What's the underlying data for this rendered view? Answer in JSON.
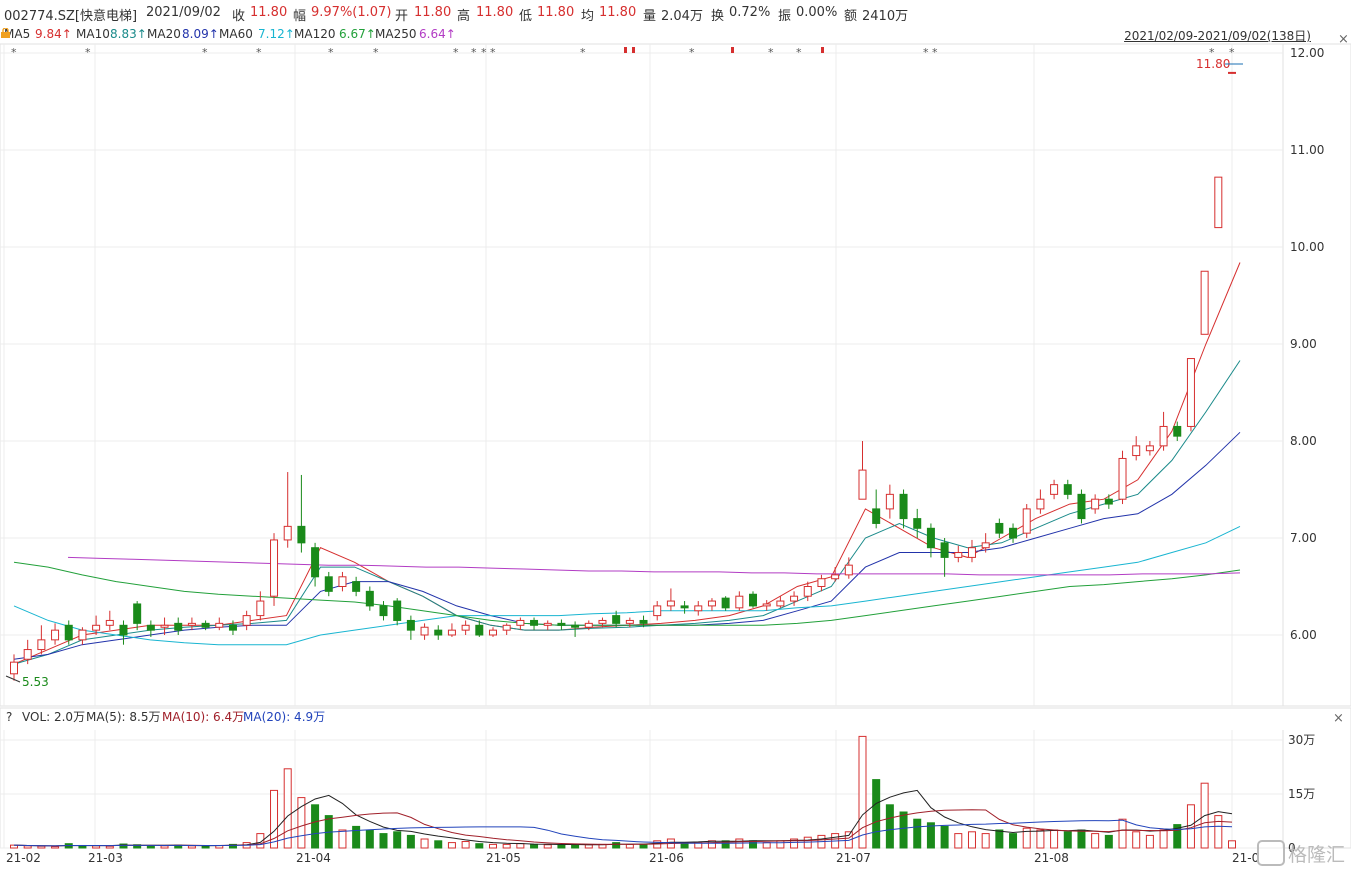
{
  "header": {
    "code": "002774.SZ[快意电梯]",
    "date": "2021/09/02",
    "close_label": "收",
    "close": "11.80",
    "amp_label": "幅",
    "amp": "9.97%(1.07)",
    "open_label": "开",
    "open": "11.80",
    "high_label": "高",
    "high": "11.80",
    "low_label": "低",
    "low": "11.80",
    "avg_label": "均",
    "avg": "11.80",
    "vol_label": "量",
    "vol": "2.04万",
    "turn_label": "换",
    "turn": "0.72%",
    "swing_label": "振",
    "swing": "0.00%",
    "amt_label": "额",
    "amt": "2410万"
  },
  "ma_bar": {
    "ma5": "MA5",
    "ma5_val": "9.84↑",
    "ma10": "MA10",
    "ma10_val": "8.83↑",
    "ma20": "MA20",
    "ma20_val": "8.09↑",
    "ma60": "MA60",
    "ma60_val": "7.12↑",
    "ma120": "MA120",
    "ma120_val": "6.67↑",
    "ma250": "MA250",
    "ma250_val": "6.64↑",
    "range": "2021/02/09-2021/09/02(138日)"
  },
  "vol_bar": {
    "help": "?",
    "vol": "VOL: 2.0万",
    "ma5": "MA(5): 8.5万",
    "ma10": "MA(10): 6.4万",
    "ma20": "MA(20): 4.9万"
  },
  "labels": {
    "last_price": "11.80",
    "low_marker": "5.53",
    "watermark": "格隆汇"
  },
  "colors": {
    "up": "#d62f2f",
    "down": "#1a8a1a",
    "ma5": "#d62f2f",
    "ma10": "#1a8a8a",
    "ma20": "#2233aa",
    "ma60": "#19b5d1",
    "ma120": "#22a03a",
    "ma250": "#b23cc4",
    "vol_ma5": "#222222",
    "vol_ma10": "#a0202a",
    "vol_ma20": "#2244bb"
  },
  "chart_data": {
    "type": "candlestick",
    "price_axis": {
      "ticks": [
        "12.00",
        "11.00",
        "10.00",
        "9.00",
        "8.00",
        "7.00",
        "6.00"
      ],
      "ylim": [
        5.3,
        12.2
      ]
    },
    "volume_axis": {
      "ticks": [
        "30万",
        "15万",
        "0"
      ],
      "ylim": [
        0,
        32
      ]
    },
    "x_ticks": [
      "21-02",
      "21-03",
      "21-04",
      "21-05",
      "21-06",
      "21-07",
      "21-08",
      "21-0"
    ],
    "series": [
      {
        "name": "MA5",
        "approx_values": [
          5.7,
          5.85,
          6.0,
          6.05,
          6.1,
          6.1,
          6.1,
          6.15,
          6.2,
          6.9,
          6.75,
          6.55,
          6.4,
          6.2,
          6.1,
          6.05,
          6.05,
          6.08,
          6.1,
          6.12,
          6.15,
          6.2,
          6.3,
          6.5,
          6.6,
          7.3,
          7.1,
          6.9,
          6.8,
          7.0,
          7.2,
          7.35,
          7.4,
          7.6,
          8.1,
          9.0,
          9.84
        ]
      },
      {
        "name": "MA10",
        "approx_values": [
          5.7,
          5.8,
          5.95,
          6.0,
          6.05,
          6.08,
          6.1,
          6.12,
          6.15,
          6.7,
          6.7,
          6.55,
          6.4,
          6.2,
          6.1,
          6.05,
          6.05,
          6.07,
          6.08,
          6.1,
          6.12,
          6.15,
          6.2,
          6.35,
          6.5,
          7.0,
          7.15,
          7.0,
          6.9,
          6.95,
          7.1,
          7.25,
          7.35,
          7.45,
          7.8,
          8.3,
          8.83
        ]
      },
      {
        "name": "MA20",
        "approx_values": [
          5.75,
          5.8,
          5.9,
          5.95,
          6.0,
          6.05,
          6.08,
          6.1,
          6.1,
          6.45,
          6.55,
          6.55,
          6.45,
          6.3,
          6.2,
          6.12,
          6.1,
          6.1,
          6.1,
          6.1,
          6.1,
          6.12,
          6.15,
          6.25,
          6.35,
          6.7,
          6.85,
          6.85,
          6.85,
          6.9,
          7.0,
          7.1,
          7.2,
          7.25,
          7.45,
          7.75,
          8.09
        ]
      },
      {
        "name": "MA60",
        "approx_values": [
          6.3,
          6.15,
          6.05,
          6.0,
          5.95,
          5.92,
          5.9,
          5.9,
          5.9,
          6.0,
          6.05,
          6.1,
          6.15,
          6.2,
          6.2,
          6.2,
          6.2,
          6.22,
          6.23,
          6.25,
          6.25,
          6.25,
          6.25,
          6.28,
          6.3,
          6.35,
          6.4,
          6.45,
          6.5,
          6.55,
          6.6,
          6.65,
          6.7,
          6.75,
          6.85,
          6.95,
          7.12
        ]
      },
      {
        "name": "MA120",
        "approx_values": [
          6.75,
          6.7,
          6.62,
          6.55,
          6.5,
          6.45,
          6.42,
          6.4,
          6.38,
          6.36,
          6.34,
          6.3,
          6.25,
          6.2,
          6.15,
          6.12,
          6.1,
          6.1,
          6.1,
          6.1,
          6.1,
          6.1,
          6.1,
          6.12,
          6.15,
          6.2,
          6.25,
          6.3,
          6.35,
          6.4,
          6.45,
          6.5,
          6.52,
          6.55,
          6.58,
          6.62,
          6.67
        ]
      },
      {
        "name": "MA250",
        "approx_values": [
          6.8,
          6.79,
          6.78,
          6.77,
          6.76,
          6.75,
          6.74,
          6.73,
          6.72,
          6.72,
          6.71,
          6.7,
          6.7,
          6.69,
          6.68,
          6.67,
          6.66,
          6.66,
          6.65,
          6.65,
          6.65,
          6.64,
          6.64,
          6.63,
          6.63,
          6.63,
          6.63,
          6.63,
          6.62,
          6.62,
          6.62,
          6.62,
          6.62,
          6.63,
          6.63,
          6.63,
          6.64
        ]
      }
    ],
    "candles_approx": [
      {
        "o": 5.6,
        "c": 5.72,
        "h": 5.8,
        "l": 5.53
      },
      {
        "o": 5.75,
        "c": 5.85,
        "h": 5.95,
        "l": 5.7
      },
      {
        "o": 5.85,
        "c": 5.95,
        "h": 6.1,
        "l": 5.8
      },
      {
        "o": 5.95,
        "c": 6.05,
        "h": 6.12,
        "l": 5.9
      },
      {
        "o": 6.1,
        "c": 5.95,
        "h": 6.15,
        "l": 5.9
      },
      {
        "o": 5.95,
        "c": 6.05,
        "h": 6.08,
        "l": 5.9
      },
      {
        "o": 6.05,
        "c": 6.1,
        "h": 6.2,
        "l": 6.0
      },
      {
        "o": 6.1,
        "c": 6.15,
        "h": 6.25,
        "l": 6.05
      },
      {
        "o": 6.1,
        "c": 6.0,
        "h": 6.15,
        "l": 5.9
      },
      {
        "o": 6.32,
        "c": 6.12,
        "h": 6.35,
        "l": 6.05
      },
      {
        "o": 6.1,
        "c": 6.05,
        "h": 6.15,
        "l": 5.98
      },
      {
        "o": 6.08,
        "c": 6.1,
        "h": 6.18,
        "l": 6.0
      },
      {
        "o": 6.12,
        "c": 6.05,
        "h": 6.18,
        "l": 6.0
      },
      {
        "o": 6.1,
        "c": 6.12,
        "h": 6.18,
        "l": 6.05
      },
      {
        "o": 6.12,
        "c": 6.08,
        "h": 6.15,
        "l": 6.05
      },
      {
        "o": 6.08,
        "c": 6.12,
        "h": 6.18,
        "l": 6.05
      },
      {
        "o": 6.1,
        "c": 6.05,
        "h": 6.15,
        "l": 6.0
      },
      {
        "o": 6.1,
        "c": 6.2,
        "h": 6.25,
        "l": 6.05
      },
      {
        "o": 6.2,
        "c": 6.35,
        "h": 6.45,
        "l": 6.15
      },
      {
        "o": 6.4,
        "c": 6.98,
        "h": 7.05,
        "l": 6.3
      },
      {
        "o": 6.98,
        "c": 7.12,
        "h": 7.68,
        "l": 6.9
      },
      {
        "o": 7.12,
        "c": 6.95,
        "h": 7.65,
        "l": 6.85
      },
      {
        "o": 6.9,
        "c": 6.6,
        "h": 6.95,
        "l": 6.5
      },
      {
        "o": 6.6,
        "c": 6.45,
        "h": 6.65,
        "l": 6.4
      },
      {
        "o": 6.5,
        "c": 6.6,
        "h": 6.65,
        "l": 6.45
      },
      {
        "o": 6.55,
        "c": 6.45,
        "h": 6.6,
        "l": 6.4
      },
      {
        "o": 6.45,
        "c": 6.3,
        "h": 6.5,
        "l": 6.25
      },
      {
        "o": 6.3,
        "c": 6.2,
        "h": 6.35,
        "l": 6.15
      },
      {
        "o": 6.35,
        "c": 6.15,
        "h": 6.38,
        "l": 6.1
      },
      {
        "o": 6.15,
        "c": 6.05,
        "h": 6.2,
        "l": 5.95
      },
      {
        "o": 6.0,
        "c": 6.08,
        "h": 6.12,
        "l": 5.95
      },
      {
        "o": 6.05,
        "c": 6.0,
        "h": 6.1,
        "l": 5.95
      },
      {
        "o": 6.0,
        "c": 6.05,
        "h": 6.12,
        "l": 5.98
      },
      {
        "o": 6.05,
        "c": 6.1,
        "h": 6.15,
        "l": 6.0
      },
      {
        "o": 6.1,
        "c": 6.0,
        "h": 6.15,
        "l": 5.98
      },
      {
        "o": 6.0,
        "c": 6.05,
        "h": 6.08,
        "l": 5.98
      },
      {
        "o": 6.05,
        "c": 6.1,
        "h": 6.12,
        "l": 6.0
      },
      {
        "o": 6.1,
        "c": 6.15,
        "h": 6.18,
        "l": 6.05
      },
      {
        "o": 6.15,
        "c": 6.1,
        "h": 6.18,
        "l": 6.05
      },
      {
        "o": 6.1,
        "c": 6.12,
        "h": 6.15,
        "l": 6.05
      },
      {
        "o": 6.12,
        "c": 6.1,
        "h": 6.16,
        "l": 6.05
      },
      {
        "o": 6.1,
        "c": 6.08,
        "h": 6.14,
        "l": 5.98
      },
      {
        "o": 6.08,
        "c": 6.12,
        "h": 6.15,
        "l": 6.05
      },
      {
        "o": 6.12,
        "c": 6.15,
        "h": 6.18,
        "l": 6.08
      },
      {
        "o": 6.2,
        "c": 6.12,
        "h": 6.25,
        "l": 6.08
      },
      {
        "o": 6.12,
        "c": 6.15,
        "h": 6.18,
        "l": 6.08
      },
      {
        "o": 6.15,
        "c": 6.12,
        "h": 6.2,
        "l": 6.08
      },
      {
        "o": 6.2,
        "c": 6.3,
        "h": 6.35,
        "l": 6.15
      },
      {
        "o": 6.3,
        "c": 6.35,
        "h": 6.48,
        "l": 6.25
      },
      {
        "o": 6.3,
        "c": 6.28,
        "h": 6.35,
        "l": 6.22
      },
      {
        "o": 6.25,
        "c": 6.3,
        "h": 6.35,
        "l": 6.2
      },
      {
        "o": 6.3,
        "c": 6.35,
        "h": 6.38,
        "l": 6.25
      },
      {
        "o": 6.38,
        "c": 6.28,
        "h": 6.4,
        "l": 6.25
      },
      {
        "o": 6.28,
        "c": 6.4,
        "h": 6.45,
        "l": 6.25
      },
      {
        "o": 6.42,
        "c": 6.3,
        "h": 6.45,
        "l": 6.28
      },
      {
        "o": 6.3,
        "c": 6.32,
        "h": 6.36,
        "l": 6.25
      },
      {
        "o": 6.3,
        "c": 6.35,
        "h": 6.4,
        "l": 6.28
      },
      {
        "o": 6.35,
        "c": 6.4,
        "h": 6.45,
        "l": 6.3
      },
      {
        "o": 6.4,
        "c": 6.5,
        "h": 6.55,
        "l": 6.35
      },
      {
        "o": 6.5,
        "c": 6.58,
        "h": 6.62,
        "l": 6.45
      },
      {
        "o": 6.58,
        "c": 6.62,
        "h": 6.7,
        "l": 6.55
      },
      {
        "o": 6.62,
        "c": 6.72,
        "h": 6.8,
        "l": 6.58
      },
      {
        "o": 7.4,
        "c": 7.7,
        "h": 8.0,
        "l": 7.5
      },
      {
        "o": 7.3,
        "c": 7.15,
        "h": 7.5,
        "l": 7.1
      },
      {
        "o": 7.3,
        "c": 7.45,
        "h": 7.55,
        "l": 7.2
      },
      {
        "o": 7.45,
        "c": 7.2,
        "h": 7.5,
        "l": 7.1
      },
      {
        "o": 7.2,
        "c": 7.1,
        "h": 7.3,
        "l": 7.0
      },
      {
        "o": 7.1,
        "c": 6.9,
        "h": 7.15,
        "l": 6.8
      },
      {
        "o": 6.95,
        "c": 6.8,
        "h": 7.0,
        "l": 6.6
      },
      {
        "o": 6.8,
        "c": 6.85,
        "h": 6.92,
        "l": 6.75
      },
      {
        "o": 6.8,
        "c": 6.9,
        "h": 6.98,
        "l": 6.75
      },
      {
        "o": 6.9,
        "c": 6.95,
        "h": 7.05,
        "l": 6.85
      },
      {
        "o": 7.15,
        "c": 7.05,
        "h": 7.2,
        "l": 7.0
      },
      {
        "o": 7.1,
        "c": 7.0,
        "h": 7.15,
        "l": 6.95
      },
      {
        "o": 7.05,
        "c": 7.3,
        "h": 7.35,
        "l": 7.0
      },
      {
        "o": 7.3,
        "c": 7.4,
        "h": 7.5,
        "l": 7.25
      },
      {
        "o": 7.45,
        "c": 7.55,
        "h": 7.6,
        "l": 7.4
      },
      {
        "o": 7.55,
        "c": 7.45,
        "h": 7.6,
        "l": 7.4
      },
      {
        "o": 7.45,
        "c": 7.2,
        "h": 7.5,
        "l": 7.15
      },
      {
        "o": 7.3,
        "c": 7.4,
        "h": 7.45,
        "l": 7.25
      },
      {
        "o": 7.4,
        "c": 7.35,
        "h": 7.45,
        "l": 7.3
      },
      {
        "o": 7.4,
        "c": 7.82,
        "h": 7.9,
        "l": 7.35
      },
      {
        "o": 7.85,
        "c": 7.95,
        "h": 8.05,
        "l": 7.8
      },
      {
        "o": 7.9,
        "c": 7.95,
        "h": 8.0,
        "l": 7.85
      },
      {
        "o": 7.95,
        "c": 8.15,
        "h": 8.3,
        "l": 7.9
      },
      {
        "o": 8.15,
        "c": 8.05,
        "h": 8.2,
        "l": 8.0
      },
      {
        "o": 8.15,
        "c": 8.85,
        "h": 8.85,
        "l": 8.1
      },
      {
        "o": 9.1,
        "c": 9.75,
        "h": 9.75,
        "l": 9.1
      },
      {
        "o": 10.2,
        "c": 10.72,
        "h": 10.72,
        "l": 10.2
      },
      {
        "o": 11.8,
        "c": 11.8,
        "h": 11.8,
        "l": 11.8
      }
    ],
    "volume_approx": [
      {
        "v": 0.8,
        "up": true
      },
      {
        "v": 0.6,
        "up": true
      },
      {
        "v": 0.5,
        "up": true
      },
      {
        "v": 0.4,
        "up": true
      },
      {
        "v": 1.2,
        "up": false
      },
      {
        "v": 0.7,
        "up": false
      },
      {
        "v": 0.6,
        "up": true
      },
      {
        "v": 0.5,
        "up": true
      },
      {
        "v": 1.1,
        "up": false
      },
      {
        "v": 0.9,
        "up": false
      },
      {
        "v": 0.6,
        "up": false
      },
      {
        "v": 0.6,
        "up": true
      },
      {
        "v": 0.8,
        "up": false
      },
      {
        "v": 0.6,
        "up": true
      },
      {
        "v": 0.6,
        "up": false
      },
      {
        "v": 0.7,
        "up": true
      },
      {
        "v": 1.0,
        "up": false
      },
      {
        "v": 1.5,
        "up": true
      },
      {
        "v": 4.0,
        "up": true
      },
      {
        "v": 16.0,
        "up": true
      },
      {
        "v": 22.0,
        "up": true
      },
      {
        "v": 14.0,
        "up": true
      },
      {
        "v": 12.0,
        "up": false
      },
      {
        "v": 9.0,
        "up": false
      },
      {
        "v": 5.0,
        "up": true
      },
      {
        "v": 6.0,
        "up": false
      },
      {
        "v": 5.0,
        "up": false
      },
      {
        "v": 4.0,
        "up": false
      },
      {
        "v": 4.5,
        "up": false
      },
      {
        "v": 3.5,
        "up": false
      },
      {
        "v": 2.5,
        "up": true
      },
      {
        "v": 2.0,
        "up": false
      },
      {
        "v": 1.5,
        "up": true
      },
      {
        "v": 1.8,
        "up": true
      },
      {
        "v": 1.2,
        "up": false
      },
      {
        "v": 1.0,
        "up": true
      },
      {
        "v": 1.0,
        "up": true
      },
      {
        "v": 1.2,
        "up": true
      },
      {
        "v": 1.0,
        "up": false
      },
      {
        "v": 0.9,
        "up": true
      },
      {
        "v": 0.8,
        "up": false
      },
      {
        "v": 0.9,
        "up": false
      },
      {
        "v": 0.9,
        "up": true
      },
      {
        "v": 1.0,
        "up": true
      },
      {
        "v": 1.5,
        "up": false
      },
      {
        "v": 1.0,
        "up": true
      },
      {
        "v": 1.0,
        "up": false
      },
      {
        "v": 2.0,
        "up": true
      },
      {
        "v": 2.5,
        "up": true
      },
      {
        "v": 1.5,
        "up": false
      },
      {
        "v": 1.5,
        "up": true
      },
      {
        "v": 2.0,
        "up": true
      },
      {
        "v": 2.0,
        "up": false
      },
      {
        "v": 2.5,
        "up": true
      },
      {
        "v": 2.0,
        "up": false
      },
      {
        "v": 1.5,
        "up": true
      },
      {
        "v": 2.0,
        "up": true
      },
      {
        "v": 2.5,
        "up": true
      },
      {
        "v": 3.0,
        "up": true
      },
      {
        "v": 3.5,
        "up": true
      },
      {
        "v": 4.0,
        "up": true
      },
      {
        "v": 4.5,
        "up": true
      },
      {
        "v": 31.0,
        "up": true
      },
      {
        "v": 19.0,
        "up": false
      },
      {
        "v": 12.0,
        "up": false
      },
      {
        "v": 10.0,
        "up": false
      },
      {
        "v": 8.0,
        "up": false
      },
      {
        "v": 7.0,
        "up": false
      },
      {
        "v": 6.0,
        "up": false
      },
      {
        "v": 4.0,
        "up": true
      },
      {
        "v": 4.5,
        "up": true
      },
      {
        "v": 4.0,
        "up": true
      },
      {
        "v": 5.0,
        "up": false
      },
      {
        "v": 4.0,
        "up": false
      },
      {
        "v": 5.5,
        "up": true
      },
      {
        "v": 5.0,
        "up": true
      },
      {
        "v": 5.0,
        "up": true
      },
      {
        "v": 4.5,
        "up": false
      },
      {
        "v": 5.0,
        "up": false
      },
      {
        "v": 4.0,
        "up": true
      },
      {
        "v": 3.5,
        "up": false
      },
      {
        "v": 8.0,
        "up": true
      },
      {
        "v": 4.5,
        "up": true
      },
      {
        "v": 3.5,
        "up": true
      },
      {
        "v": 5.0,
        "up": true
      },
      {
        "v": 6.5,
        "up": false
      },
      {
        "v": 12.0,
        "up": true
      },
      {
        "v": 18.0,
        "up": true
      },
      {
        "v": 9.0,
        "up": true
      },
      {
        "v": 2.0,
        "up": true
      }
    ]
  }
}
